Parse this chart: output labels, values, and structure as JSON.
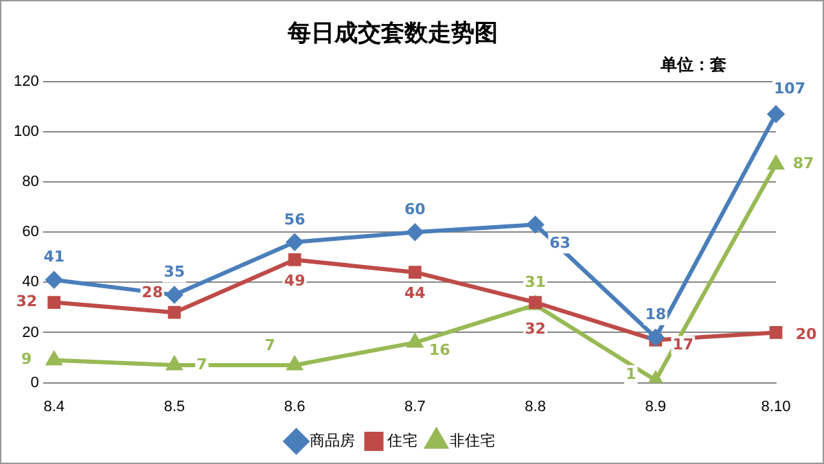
{
  "chart_data": {
    "type": "line",
    "title": "每日成交套数走势图",
    "annotations": [
      "单位：套"
    ],
    "categories": [
      "8.4",
      "8.5",
      "8.6",
      "8.7",
      "8.8",
      "8.9",
      "8.10"
    ],
    "series": [
      {
        "name": "商品房",
        "color": "#4a7ebb",
        "marker": "diamond",
        "values": [
          41,
          35,
          56,
          60,
          63,
          18,
          107
        ]
      },
      {
        "name": "住宅",
        "color": "#be4b48",
        "marker": "square",
        "values": [
          32,
          28,
          49,
          44,
          32,
          17,
          20
        ]
      },
      {
        "name": "非住宅",
        "color": "#98b954",
        "marker": "triangle",
        "values": [
          9,
          7,
          7,
          16,
          31,
          1,
          87
        ]
      }
    ],
    "ylim": [
      0,
      120
    ],
    "yticks": [
      0,
      20,
      40,
      60,
      80,
      100,
      120
    ],
    "grid": "y",
    "legend": "bottom",
    "data_labels": true
  }
}
